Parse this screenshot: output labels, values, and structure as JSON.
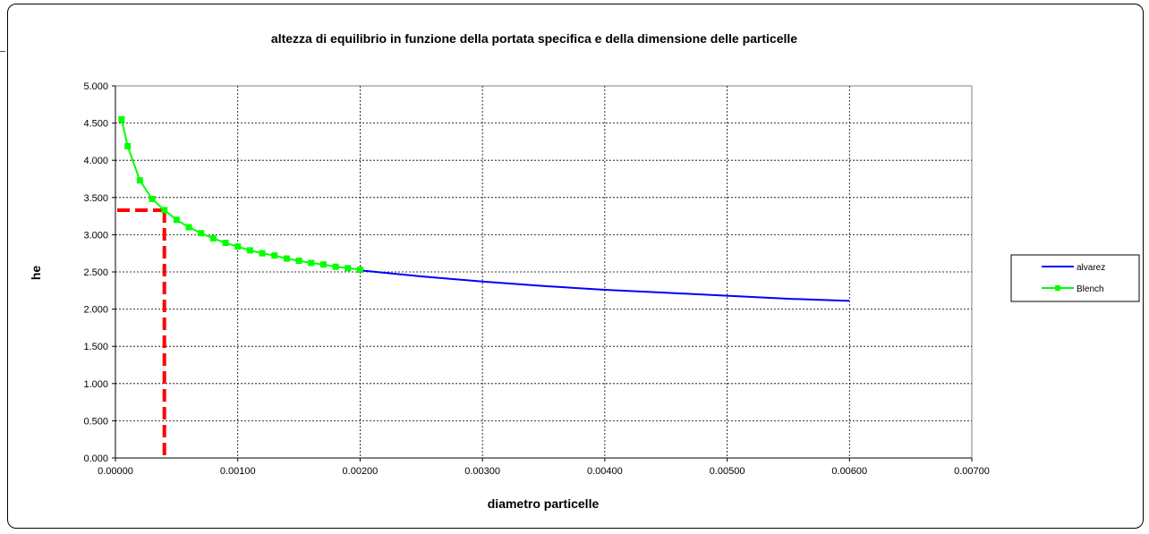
{
  "chart_data": {
    "type": "line",
    "title": "altezza di equilibrio in funzione della portata specifica e della dimensione delle particelle",
    "xlabel": "diametro particelle",
    "ylabel": "he",
    "xlim": [
      0,
      0.007
    ],
    "ylim": [
      0,
      5
    ],
    "x_ticks": [
      "0.00000",
      "0.00100",
      "0.00200",
      "0.00300",
      "0.00400",
      "0.00500",
      "0.00600",
      "0.00700"
    ],
    "y_ticks": [
      "0.000",
      "0.500",
      "1.000",
      "1.500",
      "2.000",
      "2.500",
      "3.000",
      "3.500",
      "4.000",
      "4.500",
      "5.000"
    ],
    "grid": true,
    "legend_position": "right",
    "series": [
      {
        "name": "alvarez",
        "color": "#0000ff",
        "marker": "none",
        "x": [
          0.002,
          0.0025,
          0.003,
          0.0035,
          0.004,
          0.0045,
          0.005,
          0.0055,
          0.006
        ],
        "y": [
          2.52,
          2.44,
          2.37,
          2.31,
          2.26,
          2.22,
          2.18,
          2.14,
          2.11
        ]
      },
      {
        "name": "Blench",
        "color": "#00ff00",
        "marker": "square",
        "x": [
          5e-05,
          0.0001,
          0.0002,
          0.0003,
          0.0004,
          0.0005,
          0.0006,
          0.0007,
          0.0008,
          0.0009,
          0.001,
          0.0011,
          0.0012,
          0.0013,
          0.0014,
          0.0015,
          0.0016,
          0.0017,
          0.0018,
          0.0019,
          0.002
        ],
        "y": [
          4.55,
          4.19,
          3.73,
          3.48,
          3.33,
          3.2,
          3.1,
          3.02,
          2.95,
          2.89,
          2.84,
          2.79,
          2.75,
          2.72,
          2.68,
          2.65,
          2.62,
          2.6,
          2.57,
          2.55,
          2.53
        ]
      }
    ],
    "annotations": [
      {
        "type": "dashed-guide",
        "color": "#ff0000",
        "x": 0.0004,
        "y": 3.33
      }
    ]
  }
}
